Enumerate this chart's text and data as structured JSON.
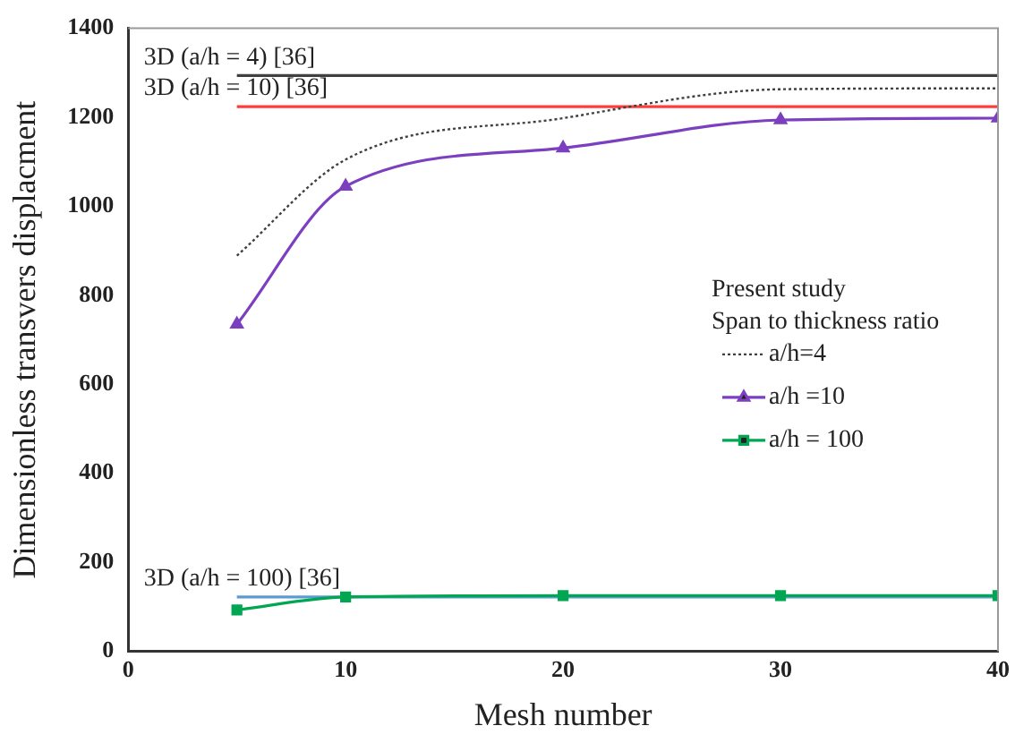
{
  "chart_data": {
    "type": "line",
    "xlabel": "Mesh number",
    "ylabel": "Dimensionless transvers displacment",
    "legend_title": "Present study\nSpan to thickness ratio",
    "x": [
      5,
      10,
      20,
      30,
      40
    ],
    "series": [
      {
        "name": "a/h=4",
        "color": "#404040",
        "values": [
          889,
          1105,
          1198,
          1263,
          1265
        ],
        "marker": "none",
        "line_style": "dotted"
      },
      {
        "name": "a/h =10",
        "color": "#7b3fbf",
        "values": [
          735,
          1045,
          1131,
          1194,
          1198
        ],
        "marker": "triangle",
        "line_style": "solid"
      },
      {
        "name": "a/h = 100",
        "color": "#00a651",
        "values": [
          93,
          122,
          125,
          125,
          125
        ],
        "marker": "square",
        "line_style": "solid"
      },
      {
        "name": "3D (a/h = 4) [36]",
        "color": "#404040",
        "values": [
          1294,
          1294,
          1294,
          1294,
          1294
        ],
        "marker": "none",
        "line_style": "solid"
      },
      {
        "name": "3D (a/h = 10) [36]",
        "color": "#ff3b3b",
        "values": [
          1224,
          1224,
          1224,
          1224,
          1224
        ],
        "marker": "none",
        "line_style": "solid"
      },
      {
        "name": "3D (a/h = 100) [36]",
        "color": "#5b9bd5",
        "values": [
          122,
          122,
          122,
          122,
          122
        ],
        "marker": "none",
        "line_style": "solid"
      }
    ],
    "xlim": [
      0,
      40
    ],
    "xticks": [
      0,
      10,
      20,
      30,
      40
    ],
    "ylim": [
      0,
      1400
    ],
    "yticks": [
      0,
      200,
      400,
      600,
      800,
      1000,
      1200,
      1400
    ],
    "grid": false,
    "legend": "right"
  }
}
